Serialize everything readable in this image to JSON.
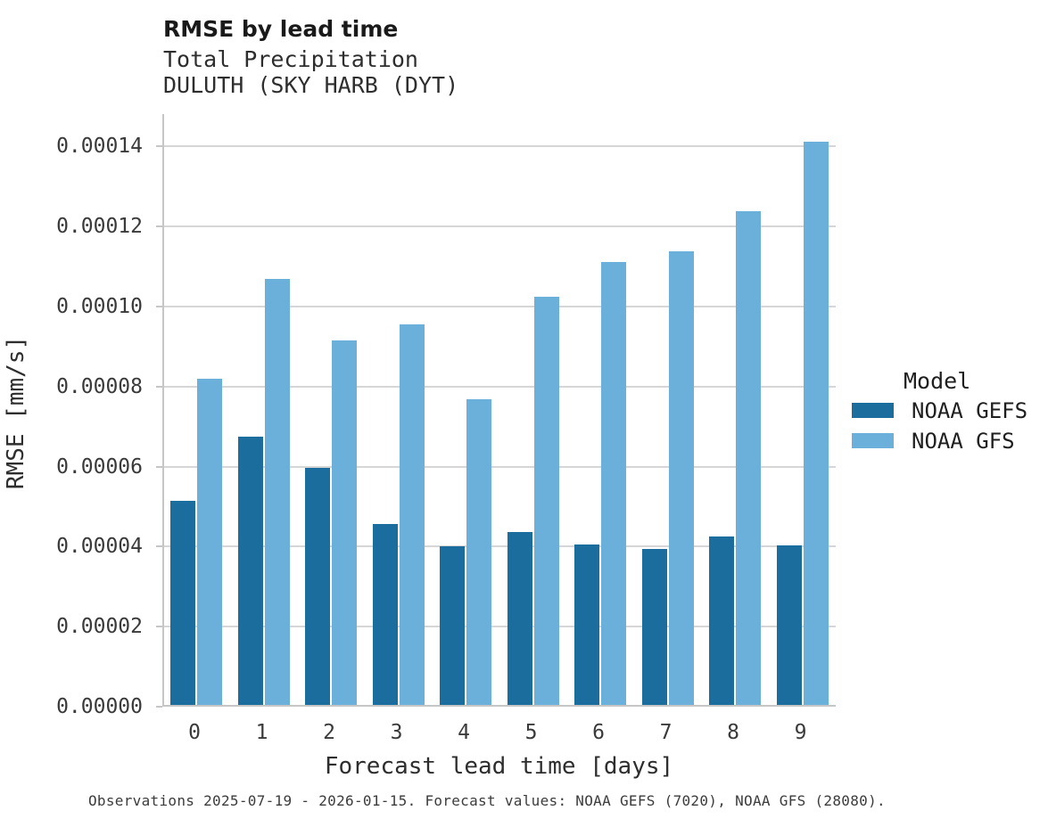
{
  "chart_data": {
    "type": "bar",
    "title": "RMSE by lead time",
    "subtitle": "Total Precipitation",
    "station": "DULUTH (SKY HARB (DYT)",
    "xlabel": "Forecast lead time [days]",
    "ylabel": "RMSE [mm/s]",
    "categories": [
      "0",
      "1",
      "2",
      "3",
      "4",
      "5",
      "6",
      "7",
      "8",
      "9"
    ],
    "series": [
      {
        "name": "NOAA GEFS",
        "color": "#1b6d9e",
        "values": [
          5.09e-05,
          6.71e-05,
          5.92e-05,
          4.52e-05,
          3.97e-05,
          4.33e-05,
          4.01e-05,
          3.9e-05,
          4.21e-05,
          3.98e-05
        ]
      },
      {
        "name": "NOAA GFS",
        "color": "#6bb0da",
        "values": [
          8.16e-05,
          0.0001065,
          9.1e-05,
          9.52e-05,
          7.65e-05,
          0.0001021,
          0.0001106,
          0.0001134,
          0.0001233,
          0.0001408
        ]
      }
    ],
    "ytick_values": [
      0.0,
      2e-05,
      4e-05,
      6e-05,
      8e-05,
      0.0001,
      0.00012,
      0.00014
    ],
    "ytick_labels": [
      "0.00000",
      "0.00002",
      "0.00004",
      "0.00006",
      "0.00008",
      "0.00010",
      "0.00012",
      "0.00014"
    ],
    "ylim": [
      0,
      0.0001481
    ],
    "grid": true,
    "legend_title": "Model",
    "legend_position": "right",
    "caption": "Observations 2025-07-19 - 2026-01-15. Forecast values: NOAA GEFS (7020), NOAA GFS (28080)."
  }
}
